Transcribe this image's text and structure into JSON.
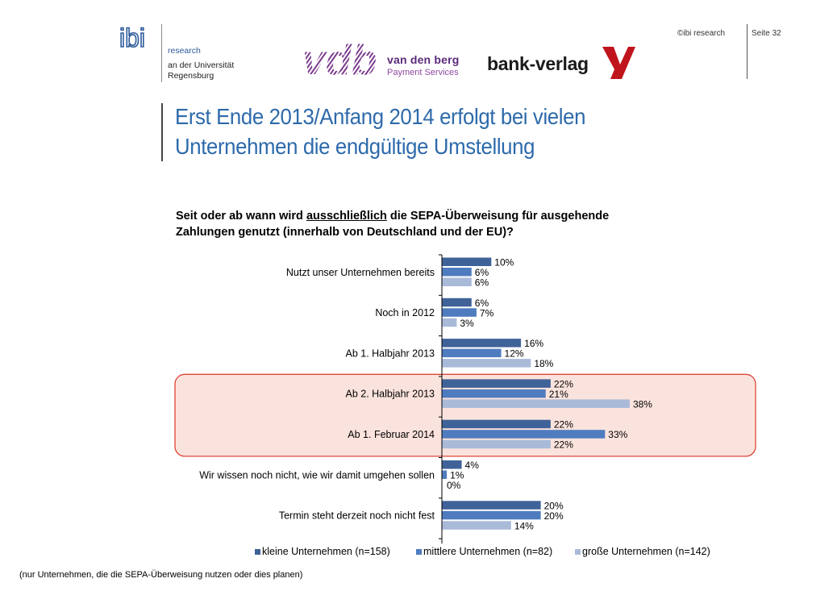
{
  "header": {
    "ibi_logo_text": "ibi",
    "ibi_lines": [
      "research",
      "an der Universität",
      "Regensburg"
    ],
    "vdb_mark_text": "vdb",
    "vdb_name": "van den berg",
    "vdb_sub": "Payment Services",
    "bank_verlag": "bank-verlag",
    "copyright": "©ibi research",
    "page": "Seite 32"
  },
  "title": {
    "line1": "Erst Ende 2013/Anfang 2014 erfolgt bei vielen",
    "line2": "Unternehmen die endgültige Umstellung"
  },
  "question": {
    "pre": "Seit oder ab wann wird ",
    "underlined": "ausschließlich",
    "post": " die SEPA-Überweisung für ausgehende",
    "line2": "Zahlungen genutzt (innerhalb von Deutschland und der EU)?"
  },
  "footnote": "(nur Unternehmen, die die SEPA-Überweisung nutzen oder dies planen)",
  "colors": {
    "title": "#2d6aab",
    "highlight_fill": "#fbe3dd",
    "highlight_border": "#e0443a"
  },
  "chart_data": {
    "type": "bar",
    "orientation": "horizontal",
    "categories": [
      "Nutzt unser Unternehmen bereits",
      "Noch in 2012",
      "Ab 1. Halbjahr 2013",
      "Ab 2. Halbjahr 2013",
      "Ab 1. Februar 2014",
      "Wir wissen noch nicht, wie wir damit umgehen sollen",
      "Termin steht derzeit noch nicht fest"
    ],
    "series": [
      {
        "name": "kleine Unternehmen (n=158)",
        "color": "#3f6298",
        "values": [
          10,
          6,
          16,
          22,
          22,
          4,
          20
        ]
      },
      {
        "name": "mittlere Unternehmen (n=82)",
        "color": "#4f7cbf",
        "values": [
          6,
          7,
          12,
          21,
          33,
          1,
          20
        ]
      },
      {
        "name": "große Unternehmen (n=142)",
        "color": "#a9bad9",
        "values": [
          6,
          3,
          18,
          38,
          22,
          0,
          14
        ]
      }
    ],
    "value_suffix": "%",
    "highlighted_categories": [
      "Ab 2. Halbjahr 2013",
      "Ab 1. Februar 2014"
    ],
    "legend_position": "bottom",
    "grid": false
  }
}
